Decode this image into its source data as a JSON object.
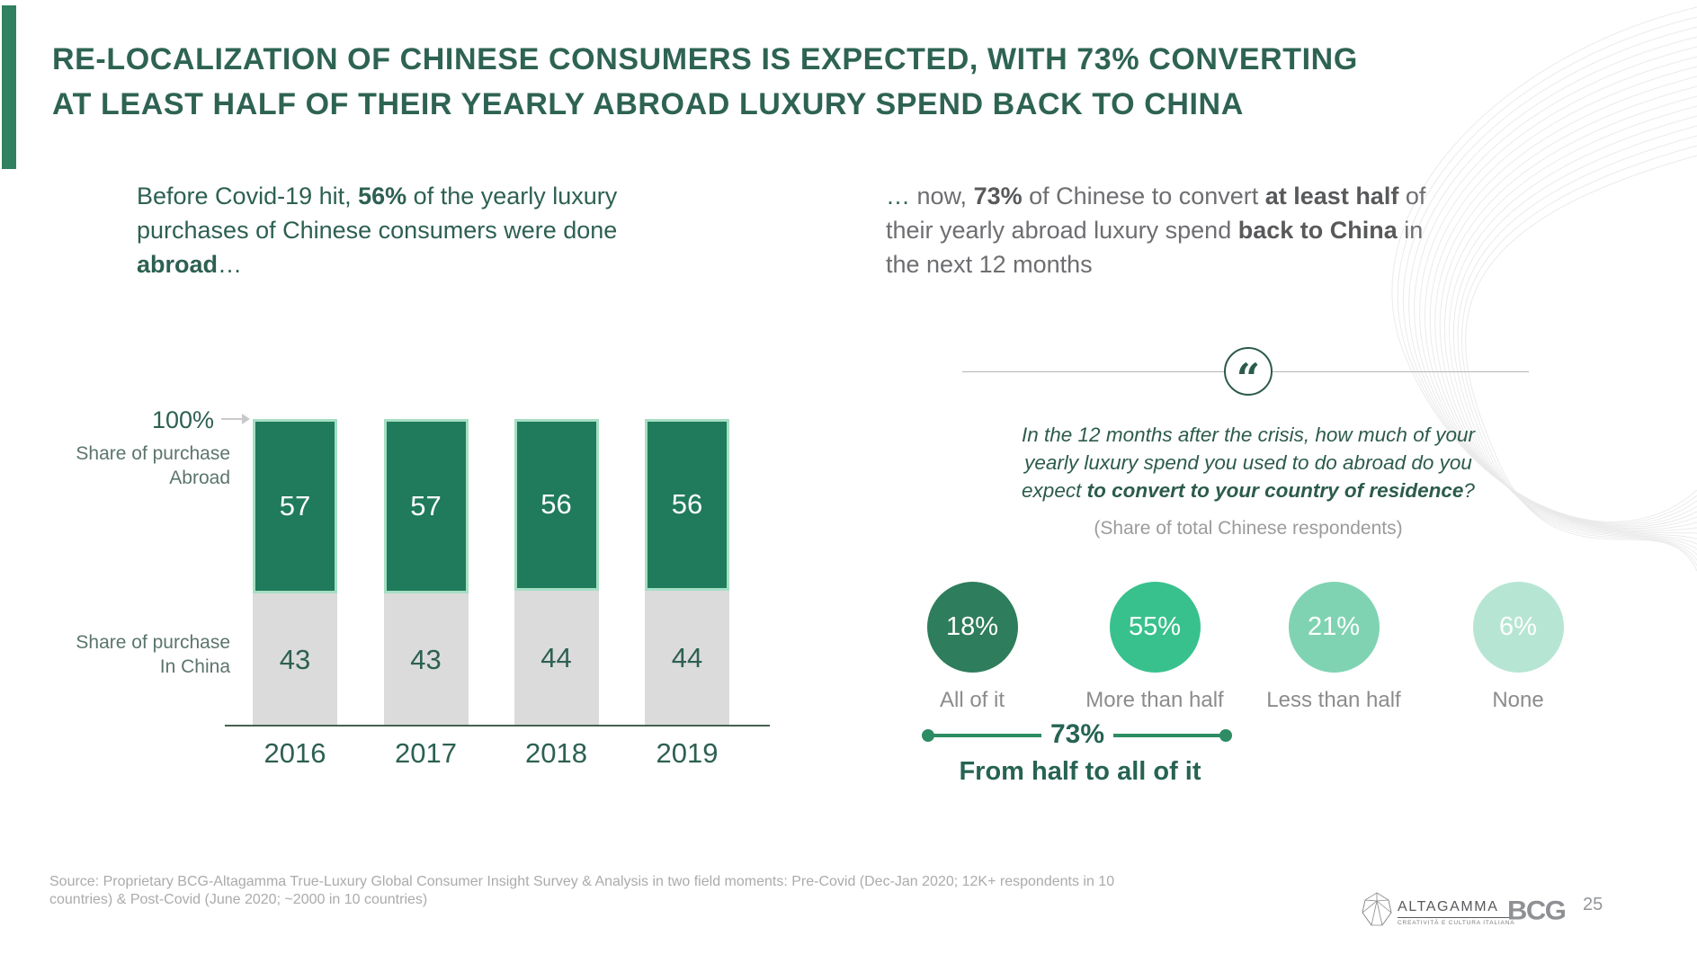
{
  "header": {
    "title_line1": "RE-LOCALIZATION OF CHINESE CONSUMERS IS EXPECTED, WITH 73% CONVERTING",
    "title_line2": "AT LEAST HALF OF THEIR YEARLY ABROAD LUXURY SPEND BACK TO CHINA"
  },
  "intro": {
    "left_runs": [
      {
        "t": "Before Covid-19 hit, "
      },
      {
        "t": "56%",
        "b": true
      },
      {
        "t": " of the yearly luxury"
      },
      {
        "br": true
      },
      {
        "t": "purchases of Chinese consumers were done"
      },
      {
        "br": true
      },
      {
        "t": "abroad",
        "b": true
      },
      {
        "t": "…"
      }
    ],
    "right_runs": [
      {
        "t": "… ",
        "c": "#2E6353"
      },
      {
        "t": "now, "
      },
      {
        "t": "73%",
        "b": true,
        "c": "#58595B"
      },
      {
        "t": " of Chinese to convert "
      },
      {
        "t": "at least half",
        "b": true,
        "c": "#58595B"
      },
      {
        "t": " of"
      },
      {
        "br": true
      },
      {
        "t": "their yearly abroad luxury spend "
      },
      {
        "t": "back to China",
        "b": true,
        "c": "#58595B"
      },
      {
        "t": " in"
      },
      {
        "br": true
      },
      {
        "t": "the next 12 months"
      }
    ]
  },
  "chart_data": [
    {
      "type": "bar",
      "stacked": true,
      "categories": [
        "2016",
        "2017",
        "2018",
        "2019"
      ],
      "series": [
        {
          "name": "Share of purchase Abroad",
          "label_lines": [
            "Share of purchase",
            "Abroad"
          ],
          "values": [
            57,
            57,
            56,
            56
          ],
          "color": "#1F7B5B",
          "border_color": "#A5DEC4",
          "value_text_color": "#FFFFFF"
        },
        {
          "name": "Share of purchase In China",
          "label_lines": [
            "Share of purchase",
            "In China"
          ],
          "values": [
            43,
            43,
            44,
            44
          ],
          "color": "#DBDBDB",
          "value_text_color": "#2D6052"
        }
      ],
      "axis_annotation": "100%",
      "ylim": [
        0,
        100
      ],
      "grid": false,
      "legend_position": "left-of-bars"
    },
    {
      "type": "bubble",
      "question": "In the 12 months after the crisis, how much of your yearly luxury spend you used to do abroad do you expect to convert to your country of residence?",
      "unit": "(Share of total Chinese respondents)",
      "categories": [
        "All of it",
        "More than half",
        "Less than half",
        "None"
      ],
      "values": [
        18,
        55,
        21,
        6
      ],
      "colors": [
        "#2E7D5C",
        "#38C18D",
        "#7FD3B3",
        "#B7E5D4"
      ],
      "callout": {
        "value": "73%",
        "label": "From half to all of it",
        "covers": [
          "All of it",
          "More than half"
        ]
      }
    }
  ],
  "quote": {
    "icon": "“",
    "runs": [
      {
        "t": "In the 12 months after the crisis, how much of your"
      },
      {
        "br": true
      },
      {
        "t": "yearly luxury spend you used to do abroad do you"
      },
      {
        "br": true
      },
      {
        "t": "expect "
      },
      {
        "t": "to convert to your country of residence",
        "b": true
      },
      {
        "t": "?"
      }
    ],
    "subtitle": "(Share of total Chinese respondents)"
  },
  "footer": {
    "source_line1": "Source: Proprietary BCG-Altagamma True-Luxury Global Consumer Insight Survey & Analysis in two field moments: Pre-Covid (Dec-Jan 2020; 12K+ respondents in 10",
    "source_line2": "countries) & Post-Covid (June 2020; ~2000 in 10 countries)",
    "altagamma_name": "ALTAGAMMA",
    "altagamma_tagline": "CREATIVITÀ E CULTURA ITALIANA",
    "bcg_label": "BCG",
    "page_number": "25"
  }
}
